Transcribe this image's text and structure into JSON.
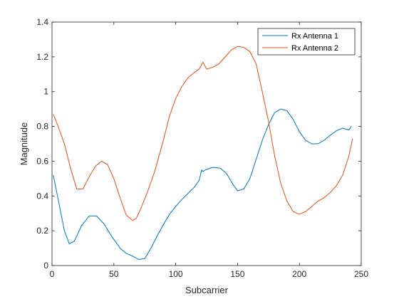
{
  "chart_data": {
    "type": "line",
    "title": "",
    "xlabel": "Subcarrier",
    "ylabel": "Magnitude",
    "xlim": [
      0,
      250
    ],
    "ylim": [
      0,
      1.4
    ],
    "xticks": [
      0,
      50,
      100,
      150,
      200,
      250
    ],
    "yticks": [
      0,
      0.2,
      0.4,
      0.6,
      0.8,
      1,
      1.2,
      1.4
    ],
    "xtick_labels": [
      "0",
      "50",
      "100",
      "150",
      "200",
      "250"
    ],
    "ytick_labels": [
      "0",
      "0.2",
      "0.4",
      "0.6",
      "0.8",
      "1",
      "1.2",
      "1.4"
    ],
    "grid": false,
    "legend_position": "top-right",
    "series": [
      {
        "name": "Rx Antenna 1",
        "color": "#0072BD",
        "points": [
          [
            1,
            0.52
          ],
          [
            5,
            0.38
          ],
          [
            10,
            0.2
          ],
          [
            14,
            0.125
          ],
          [
            18,
            0.14
          ],
          [
            24,
            0.23
          ],
          [
            30,
            0.285
          ],
          [
            36,
            0.285
          ],
          [
            42,
            0.24
          ],
          [
            48,
            0.17
          ],
          [
            55,
            0.1
          ],
          [
            60,
            0.07
          ],
          [
            65,
            0.055
          ],
          [
            70,
            0.035
          ],
          [
            75,
            0.04
          ],
          [
            80,
            0.1
          ],
          [
            85,
            0.17
          ],
          [
            90,
            0.235
          ],
          [
            95,
            0.295
          ],
          [
            100,
            0.34
          ],
          [
            105,
            0.38
          ],
          [
            110,
            0.415
          ],
          [
            115,
            0.45
          ],
          [
            119,
            0.49
          ],
          [
            121,
            0.55
          ],
          [
            122,
            0.54
          ],
          [
            124,
            0.55
          ],
          [
            130,
            0.565
          ],
          [
            136,
            0.56
          ],
          [
            141,
            0.53
          ],
          [
            146,
            0.47
          ],
          [
            150,
            0.43
          ],
          [
            155,
            0.44
          ],
          [
            160,
            0.5
          ],
          [
            165,
            0.61
          ],
          [
            170,
            0.72
          ],
          [
            175,
            0.81
          ],
          [
            180,
            0.88
          ],
          [
            185,
            0.9
          ],
          [
            190,
            0.89
          ],
          [
            195,
            0.84
          ],
          [
            200,
            0.77
          ],
          [
            205,
            0.72
          ],
          [
            210,
            0.7
          ],
          [
            215,
            0.7
          ],
          [
            220,
            0.72
          ],
          [
            225,
            0.75
          ],
          [
            230,
            0.775
          ],
          [
            235,
            0.79
          ],
          [
            240,
            0.78
          ],
          [
            242,
            0.8
          ]
        ]
      },
      {
        "name": "Rx Antenna 2",
        "color": "#D95319",
        "points": [
          [
            1,
            0.87
          ],
          [
            5,
            0.8
          ],
          [
            10,
            0.7
          ],
          [
            15,
            0.56
          ],
          [
            20,
            0.44
          ],
          [
            25,
            0.44
          ],
          [
            30,
            0.51
          ],
          [
            35,
            0.57
          ],
          [
            40,
            0.6
          ],
          [
            45,
            0.58
          ],
          [
            50,
            0.5
          ],
          [
            55,
            0.39
          ],
          [
            60,
            0.29
          ],
          [
            65,
            0.26
          ],
          [
            68,
            0.27
          ],
          [
            72,
            0.33
          ],
          [
            77,
            0.42
          ],
          [
            83,
            0.54
          ],
          [
            90,
            0.72
          ],
          [
            95,
            0.86
          ],
          [
            100,
            0.96
          ],
          [
            105,
            1.03
          ],
          [
            110,
            1.08
          ],
          [
            115,
            1.11
          ],
          [
            119,
            1.13
          ],
          [
            122,
            1.17
          ],
          [
            125,
            1.13
          ],
          [
            130,
            1.14
          ],
          [
            135,
            1.16
          ],
          [
            140,
            1.2
          ],
          [
            145,
            1.24
          ],
          [
            150,
            1.26
          ],
          [
            155,
            1.255
          ],
          [
            160,
            1.23
          ],
          [
            165,
            1.16
          ],
          [
            170,
            1.0
          ],
          [
            175,
            0.83
          ],
          [
            180,
            0.63
          ],
          [
            185,
            0.47
          ],
          [
            190,
            0.37
          ],
          [
            195,
            0.31
          ],
          [
            200,
            0.295
          ],
          [
            205,
            0.31
          ],
          [
            210,
            0.34
          ],
          [
            215,
            0.37
          ],
          [
            220,
            0.39
          ],
          [
            225,
            0.42
          ],
          [
            230,
            0.46
          ],
          [
            235,
            0.52
          ],
          [
            240,
            0.63
          ],
          [
            243,
            0.73
          ]
        ]
      }
    ]
  }
}
